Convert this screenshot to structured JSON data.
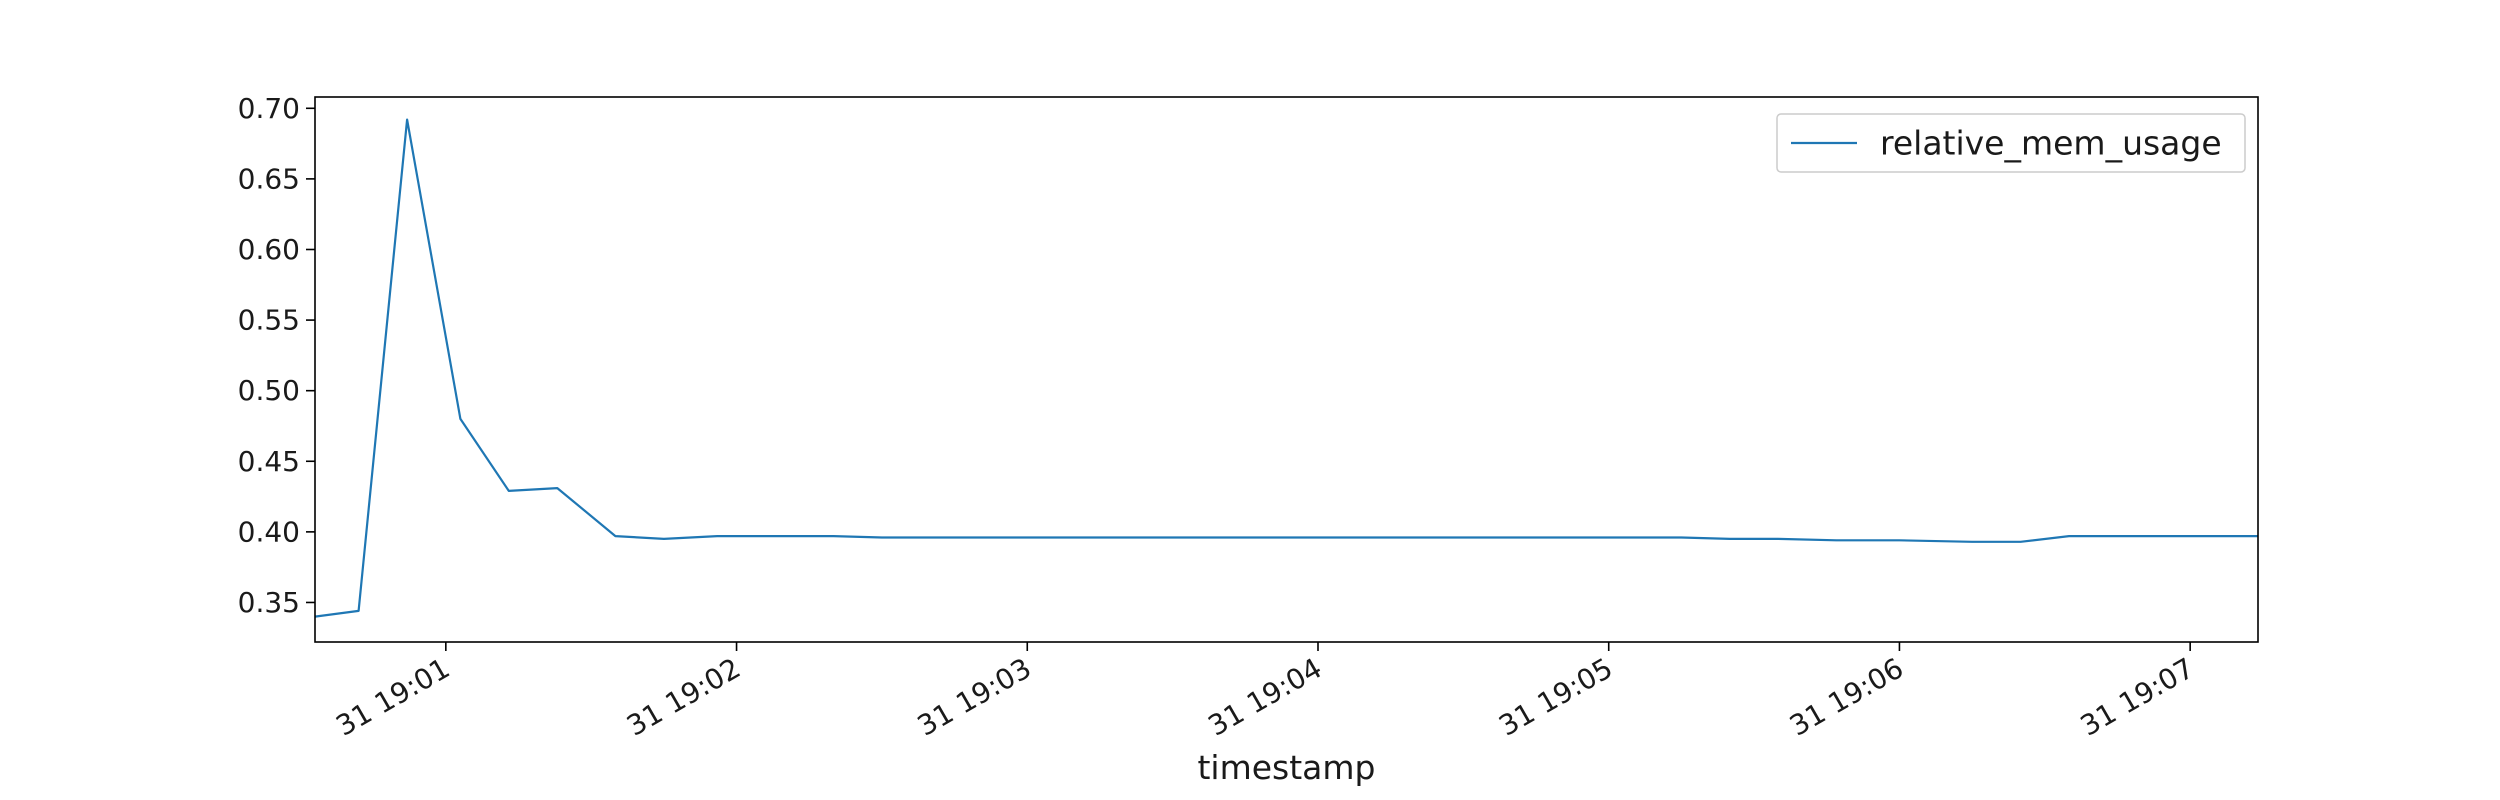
{
  "chart_data": {
    "type": "line",
    "title": "",
    "xlabel": "timestamp",
    "ylabel": "",
    "x_tick_labels": [
      "31 19:01",
      "31 19:02",
      "31 19:03",
      "31 19:04",
      "31 19:05",
      "31 19:06",
      "31 19:07"
    ],
    "y_tick_labels": [
      "0.35",
      "0.40",
      "0.45",
      "0.50",
      "0.55",
      "0.60",
      "0.65",
      "0.70"
    ],
    "y_ticks": [
      0.35,
      0.4,
      0.45,
      0.5,
      0.55,
      0.6,
      0.65,
      0.7
    ],
    "xlim": [
      "19:00:33",
      "19:07:14"
    ],
    "ylim": [
      0.322,
      0.708
    ],
    "grid": false,
    "legend_position": "top-right",
    "series": [
      {
        "name": "relative_mem_usage",
        "color": "#1f77b4",
        "x": [
          "19:00:33",
          "19:00:42",
          "19:00:52",
          "19:01:03",
          "19:01:13",
          "19:01:23",
          "19:01:35",
          "19:01:45",
          "19:01:56",
          "19:02:10",
          "19:02:20",
          "19:02:30",
          "19:03:00",
          "19:04:00",
          "19:04:30",
          "19:05:00",
          "19:05:15",
          "19:05:25",
          "19:05:35",
          "19:05:47",
          "19:06:00",
          "19:06:15",
          "19:06:25",
          "19:06:35",
          "19:06:45",
          "19:07:00",
          "19:07:14"
        ],
        "y": [
          0.34,
          0.344,
          0.692,
          0.48,
          0.429,
          0.431,
          0.397,
          0.395,
          0.397,
          0.397,
          0.397,
          0.396,
          0.396,
          0.396,
          0.396,
          0.396,
          0.396,
          0.395,
          0.395,
          0.394,
          0.394,
          0.393,
          0.393,
          0.397,
          0.397,
          0.397,
          0.397
        ]
      }
    ]
  }
}
